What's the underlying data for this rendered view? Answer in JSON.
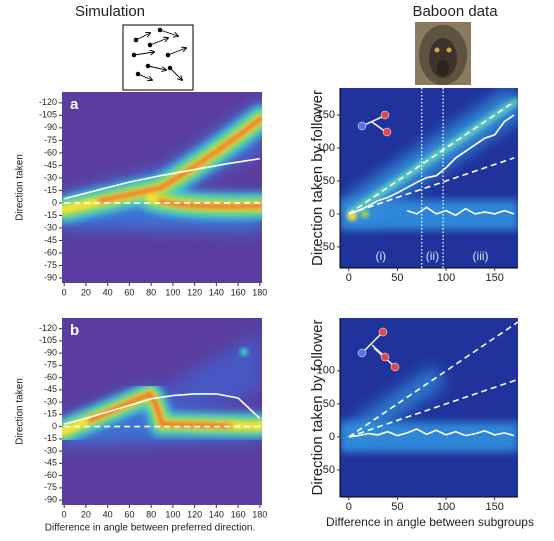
{
  "column_titles": [
    "Simulation",
    "Baboon data"
  ],
  "chart_data": [
    {
      "type": "heatmap",
      "label": "a",
      "ylabel": "Direction taken",
      "xlim": [
        -2,
        182
      ],
      "ylim": [
        -133,
        96
      ],
      "y_inverted": true,
      "xticks": [
        0,
        20,
        40,
        60,
        80,
        100,
        120,
        140,
        160,
        180
      ],
      "yticks": [
        -120,
        -105,
        -90,
        -75,
        -60,
        -45,
        -30,
        -15,
        0,
        {
          "value": 15,
          "label": "-15"
        },
        {
          "value": 30,
          "label": "-30"
        },
        {
          "value": 45,
          "label": "-45"
        },
        {
          "value": 60,
          "label": "-60"
        },
        {
          "value": 75,
          "label": "-75"
        },
        {
          "value": 90,
          "label": "-90"
        }
      ],
      "series": [
        {
          "color": "#ffffff",
          "style": "solid",
          "x": [
            0,
            30,
            60,
            90,
            120,
            150,
            180
          ],
          "values": [
            -5,
            -15,
            -25,
            -33,
            -40,
            -47,
            -53
          ]
        },
        {
          "color": "#ffffff",
          "style": "dashed",
          "x": [
            0,
            180
          ],
          "values": [
            0,
            0
          ]
        }
      ]
    },
    {
      "type": "heatmap",
      "label": "b",
      "ylabel": "Direction taken",
      "xlabel": "Difference in angle between preferred direction.",
      "xlim": [
        -2,
        182
      ],
      "ylim": [
        -133,
        96
      ],
      "y_inverted": true,
      "xticks": [
        0,
        20,
        40,
        60,
        80,
        100,
        120,
        140,
        160,
        180
      ],
      "yticks": [
        -120,
        -105,
        -90,
        -75,
        -60,
        -45,
        -30,
        -15,
        0,
        {
          "value": 15,
          "label": "-15"
        },
        {
          "value": 30,
          "label": "-30"
        },
        {
          "value": 45,
          "label": "-45"
        },
        {
          "value": 60,
          "label": "-60"
        },
        {
          "value": 75,
          "label": "-75"
        },
        {
          "value": 90,
          "label": "-90"
        }
      ],
      "series": [
        {
          "color": "#ffffff",
          "style": "solid",
          "x": [
            0,
            20,
            40,
            60,
            80,
            100,
            120,
            140,
            160,
            180
          ],
          "values": [
            -3,
            -10,
            -18,
            -26,
            -34,
            -38,
            -40,
            -40,
            -35,
            -10
          ]
        },
        {
          "color": "#ffffff",
          "style": "dashed",
          "x": [
            0,
            180
          ],
          "values": [
            0,
            0
          ]
        }
      ]
    },
    {
      "type": "heatmap",
      "ylabel": "Direction taken by follower",
      "xlim": [
        -9,
        174
      ],
      "ylim": [
        -82,
        191
      ],
      "xticks": [
        0,
        50,
        100,
        150
      ],
      "yticks": [
        -50,
        0,
        50,
        100,
        150
      ],
      "dividers": [
        75,
        97
      ],
      "annotations": [
        "(i)",
        "(ii)",
        "(iii)"
      ],
      "series": [
        {
          "color": "#ffffff",
          "style": "solid",
          "x": [
            0,
            10,
            20,
            30,
            40,
            50,
            60,
            70,
            80,
            90,
            100,
            110,
            120,
            130,
            140,
            150,
            160,
            170
          ],
          "values": [
            0,
            5,
            12,
            20,
            25,
            32,
            40,
            48,
            55,
            58,
            70,
            85,
            95,
            105,
            115,
            120,
            140,
            150
          ]
        },
        {
          "color": "#ffffff",
          "style": "solid",
          "x": [
            0,
            10,
            20,
            30,
            40,
            50,
            60,
            70,
            80,
            90,
            100,
            110,
            120,
            130,
            140,
            150,
            160,
            170
          ],
          "values": [
            null,
            null,
            null,
            null,
            null,
            null,
            5,
            0,
            10,
            0,
            5,
            -2,
            8,
            0,
            3,
            0,
            5,
            0
          ]
        },
        {
          "color": "#ffffff",
          "style": "dashed",
          "x": [
            0,
            170
          ],
          "values": [
            0,
            170
          ]
        },
        {
          "color": "#ffffff",
          "style": "dashed",
          "x": [
            0,
            170
          ],
          "values": [
            0,
            85
          ]
        }
      ]
    },
    {
      "type": "heatmap",
      "ylabel": "Direction taken by follower",
      "xlabel": "Difference in angle between subgroups",
      "xlim": [
        -9,
        174
      ],
      "ylim": [
        -91,
        180
      ],
      "xticks": [
        0,
        50,
        100,
        150
      ],
      "yticks": [
        -50,
        0,
        50,
        100
      ],
      "series": [
        {
          "color": "#ffffff",
          "style": "solid",
          "x": [
            0,
            10,
            20,
            30,
            40,
            50,
            60,
            70,
            80,
            90,
            100,
            110,
            120,
            130,
            140,
            150,
            160,
            170
          ],
          "values": [
            0,
            2,
            5,
            3,
            8,
            2,
            6,
            12,
            4,
            10,
            3,
            8,
            2,
            5,
            9,
            3,
            6,
            2
          ]
        },
        {
          "color": "#ffffff",
          "style": "dashed",
          "x": [
            0,
            174
          ],
          "values": [
            0,
            174
          ]
        },
        {
          "color": "#ffffff",
          "style": "dashed",
          "x": [
            0,
            174
          ],
          "values": [
            0,
            87
          ]
        }
      ]
    }
  ]
}
